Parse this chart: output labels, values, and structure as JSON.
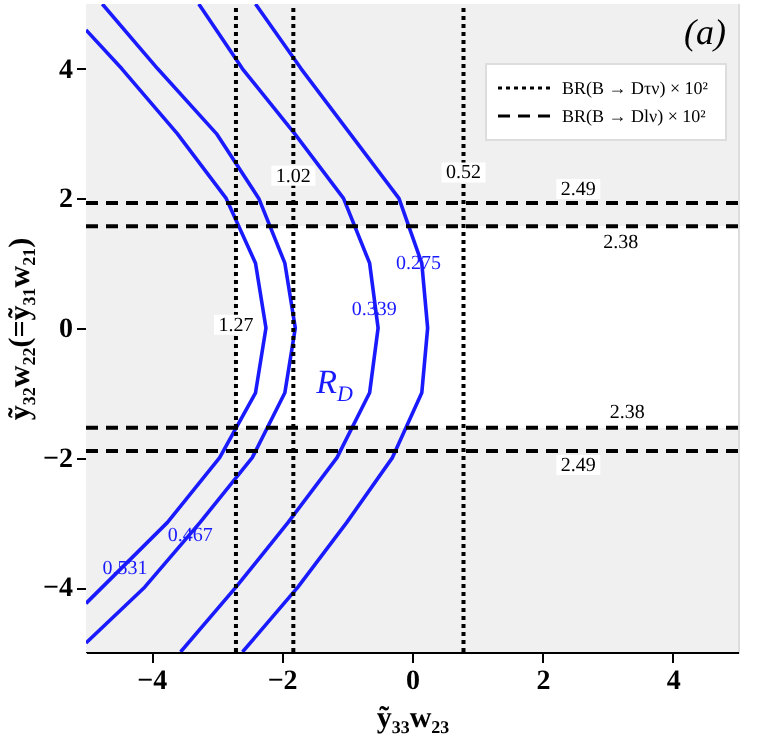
{
  "chart_data": {
    "type": "line",
    "xlabel": "ỹ₃₃w₂₃",
    "ylabel": "ỹ₃₂w₂₂(=ỹ₃₁w₂₁)",
    "xlim": [
      -5,
      5
    ],
    "ylim": [
      -5,
      5
    ],
    "xticks": [
      -4,
      -2,
      0,
      2,
      4
    ],
    "yticks": [
      -4,
      -2,
      0,
      2,
      4
    ],
    "grid": false,
    "legend": "top right",
    "series": [
      {
        "color": "#1a1aff",
        "x": [
          -2.4,
          -1.7,
          -0.95,
          -0.2,
          0.15,
          0.24,
          0.15,
          -0.3,
          -1.0,
          -1.75,
          -2.6
        ],
        "values": [
          5,
          4,
          3,
          2,
          1,
          0,
          -1,
          -2,
          -3,
          -4,
          -5
        ]
      },
      {
        "color": "#1a1aff",
        "x": [
          -3.27,
          -2.6,
          -1.8,
          -1.05,
          -0.65,
          -0.52,
          -0.65,
          -1.15,
          -1.9,
          -2.7,
          -3.55
        ],
        "values": [
          5,
          4,
          3,
          2,
          1,
          0,
          -1,
          -2,
          -3,
          -4,
          -5
        ]
      },
      {
        "color": "#1a1aff",
        "x": [
          -4.75,
          -3.9,
          -3.0,
          -2.35,
          -1.95,
          -1.79,
          -1.95,
          -2.45,
          -3.25,
          -4.1,
          -5
        ],
        "values": [
          5,
          4,
          3,
          2,
          1,
          0,
          -1,
          -2,
          -3,
          -4,
          -4.86
        ]
      },
      {
        "color": "#1a1aff",
        "x": [
          -5,
          -4.45,
          -3.6,
          -2.85,
          -2.4,
          -2.24,
          -2.4,
          -2.95,
          -3.75,
          -5
        ],
        "values": [
          4.6,
          4,
          3,
          2,
          1,
          0,
          -1,
          -2,
          -3,
          -4.25
        ]
      },
      {
        "name": "BR(B → Dτν) × 10²",
        "color": "#000000",
        "line_style": "dotted",
        "x": [
          -2.7,
          -2.7
        ],
        "values": [
          -5,
          5
        ]
      },
      {
        "color": "#000000",
        "line_style": "dotted",
        "x": [
          -1.82,
          -1.82
        ],
        "values": [
          -5,
          5
        ]
      },
      {
        "color": "#000000",
        "line_style": "dotted",
        "x": [
          0.79,
          0.79
        ],
        "values": [
          -5,
          5
        ]
      },
      {
        "name": "BR(B → Dlν) × 10²",
        "color": "#000000",
        "line_style": "dashed",
        "x": [
          -5,
          5
        ],
        "values": [
          1.93,
          1.93
        ]
      },
      {
        "color": "#000000",
        "line_style": "dashed",
        "x": [
          -5,
          5
        ],
        "values": [
          1.57,
          1.57
        ]
      },
      {
        "color": "#000000",
        "line_style": "dashed",
        "x": [
          -5,
          5
        ],
        "values": [
          -1.54,
          -1.54
        ]
      },
      {
        "color": "#000000",
        "line_style": "dashed",
        "x": [
          -5,
          5
        ],
        "values": [
          -1.9,
          -1.9
        ]
      }
    ],
    "bands": [
      {
        "axis": "x",
        "from": -5,
        "to": -2.7,
        "color": "#f0f0f0"
      },
      {
        "axis": "y",
        "from": 1.57,
        "to": 5,
        "color": "#f0f0f0"
      },
      {
        "axis": "y",
        "from": -5,
        "to": -1.54,
        "color": "#f0f0f0"
      }
    ],
    "annotations": [
      "(a)",
      "R$_{D}$",
      {
        "text": "1.27",
        "x": -2.7,
        "y": 0.05
      },
      {
        "text": "1.02",
        "x": -1.82,
        "y": 2.35
      },
      {
        "text": "0.52",
        "x": 0.79,
        "y": 2.4
      },
      {
        "text": "2.49",
        "x": 2.55,
        "y": 1.93
      },
      {
        "text": "2.38",
        "x": 3.2,
        "y": 1.57
      },
      {
        "text": "2.38",
        "x": 3.3,
        "y": -1.54
      },
      {
        "text": "2.49",
        "x": 2.55,
        "y": -1.9
      },
      {
        "text": "0.275",
        "x": 0.1,
        "y": 1.0
      },
      {
        "text": "0.339",
        "x": -0.58,
        "y": 0.3
      },
      {
        "text": "0.467",
        "x": -3.4,
        "y": -3.2
      },
      {
        "text": "0.531",
        "x": -4.4,
        "y": -3.7
      }
    ]
  }
}
